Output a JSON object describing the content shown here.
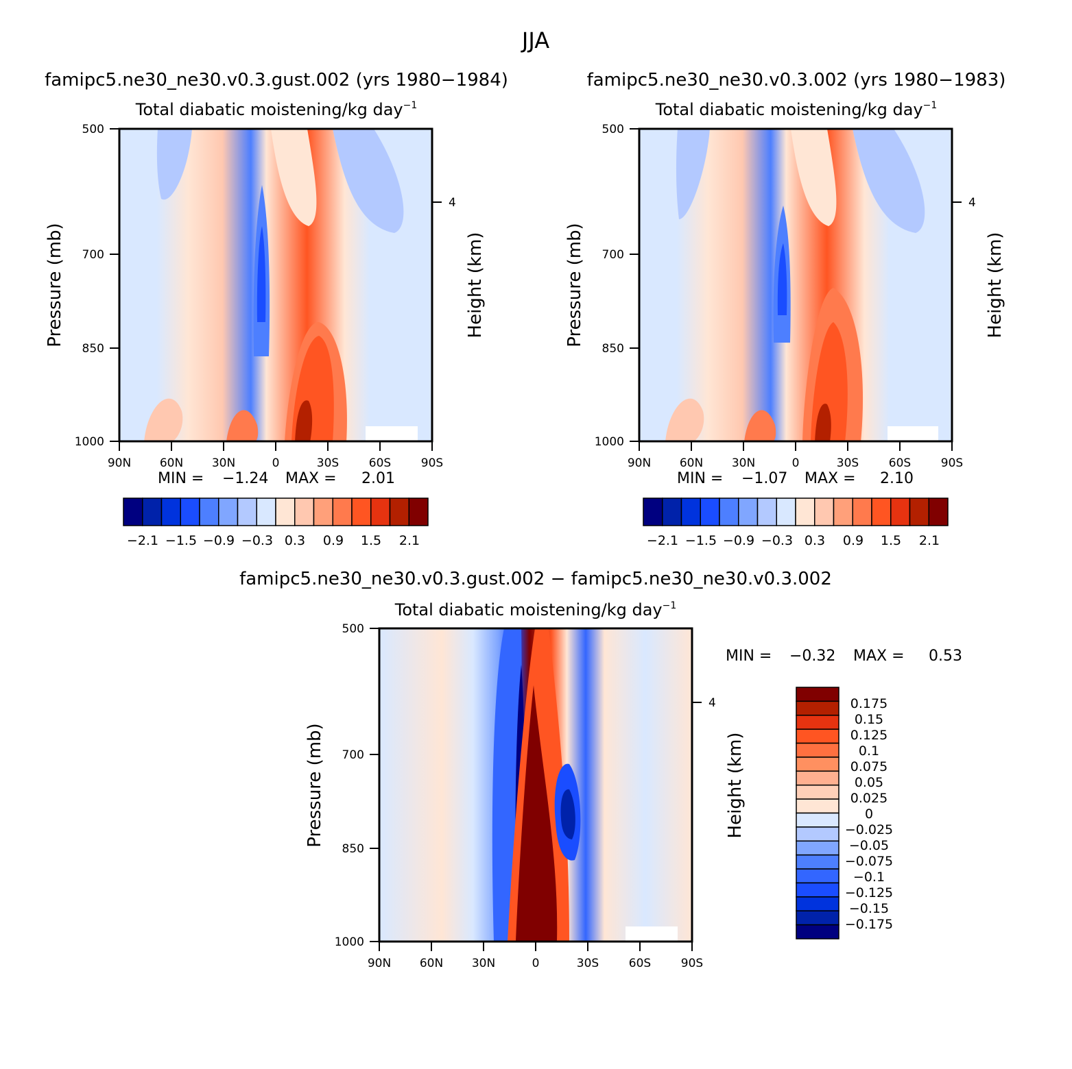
{
  "figure_title": "JJA",
  "colors": {
    "cb16": [
      "#000080",
      "#0022aa",
      "#0033dd",
      "#1a4dff",
      "#4d7fff",
      "#80a6ff",
      "#b3c9ff",
      "#d9e8ff",
      "#ffe6d5",
      "#ffc8b0",
      "#ffa07a",
      "#ff7a4d",
      "#ff5522",
      "#e63310",
      "#b32000",
      "#800000"
    ],
    "cb18": [
      "#000080",
      "#0022aa",
      "#0033dd",
      "#1a4dff",
      "#3366ff",
      "#4d7fff",
      "#80a6ff",
      "#b3c9ff",
      "#d9e8ff",
      "#ffe6d5",
      "#ffd0b8",
      "#ffb090",
      "#ff9060",
      "#ff7040",
      "#ff5522",
      "#e63310",
      "#b32000",
      "#800000"
    ]
  },
  "chart_data": [
    {
      "type": "heatmap",
      "title": "famipc5.ne30_ne30.v0.3.gust.002 (yrs 1980−1984)",
      "subtitle": "Total diabatic moistening/kg day",
      "subtitle_sup": "−1",
      "xlabel": "",
      "ylabel": "Pressure (mb)",
      "ylabel_right": "Height (km)",
      "x_ticks": [
        "90N",
        "60N",
        "30N",
        "0",
        "30S",
        "60S",
        "90S"
      ],
      "y_ticks": [
        "500",
        "700",
        "850",
        "1000"
      ],
      "y_right_ticks": [
        "4"
      ],
      "min_label": "MIN =",
      "min_value": "−1.24",
      "max_label": "MAX =",
      "max_value": "2.01",
      "colorbar_labels": [
        "−2.1",
        "−1.5",
        "−0.9",
        "−0.3",
        "0.3",
        "0.9",
        "1.5",
        "2.1"
      ]
    },
    {
      "type": "heatmap",
      "title": "famipc5.ne30_ne30.v0.3.002 (yrs 1980−1983)",
      "subtitle": "Total diabatic moistening/kg day",
      "subtitle_sup": "−1",
      "xlabel": "",
      "ylabel": "Pressure (mb)",
      "ylabel_right": "Height (km)",
      "x_ticks": [
        "90N",
        "60N",
        "30N",
        "0",
        "30S",
        "60S",
        "90S"
      ],
      "y_ticks": [
        "500",
        "700",
        "850",
        "1000"
      ],
      "y_right_ticks": [
        "4"
      ],
      "min_label": "MIN =",
      "min_value": "−1.07",
      "max_label": "MAX =",
      "max_value": "2.10",
      "colorbar_labels": [
        "−2.1",
        "−1.5",
        "−0.9",
        "−0.3",
        "0.3",
        "0.9",
        "1.5",
        "2.1"
      ]
    },
    {
      "type": "heatmap",
      "title": "famipc5.ne30_ne30.v0.3.gust.002 − famipc5.ne30_ne30.v0.3.002",
      "subtitle": "Total diabatic moistening/kg day",
      "subtitle_sup": "−1",
      "xlabel": "",
      "ylabel": "Pressure (mb)",
      "ylabel_right": "Height (km)",
      "x_ticks": [
        "90N",
        "60N",
        "30N",
        "0",
        "30S",
        "60S",
        "90S"
      ],
      "y_ticks": [
        "500",
        "700",
        "850",
        "1000"
      ],
      "y_right_ticks": [
        "4"
      ],
      "min_label": "MIN =",
      "min_value": "−0.32",
      "max_label": "MAX =",
      "max_value": "0.53",
      "colorbar_labels": [
        "0.175",
        "0.15",
        "0.125",
        "0.1",
        "0.075",
        "0.05",
        "0.025",
        "0",
        "−0.025",
        "−0.05",
        "−0.075",
        "−0.1",
        "−0.125",
        "−0.15",
        "−0.175"
      ]
    }
  ]
}
